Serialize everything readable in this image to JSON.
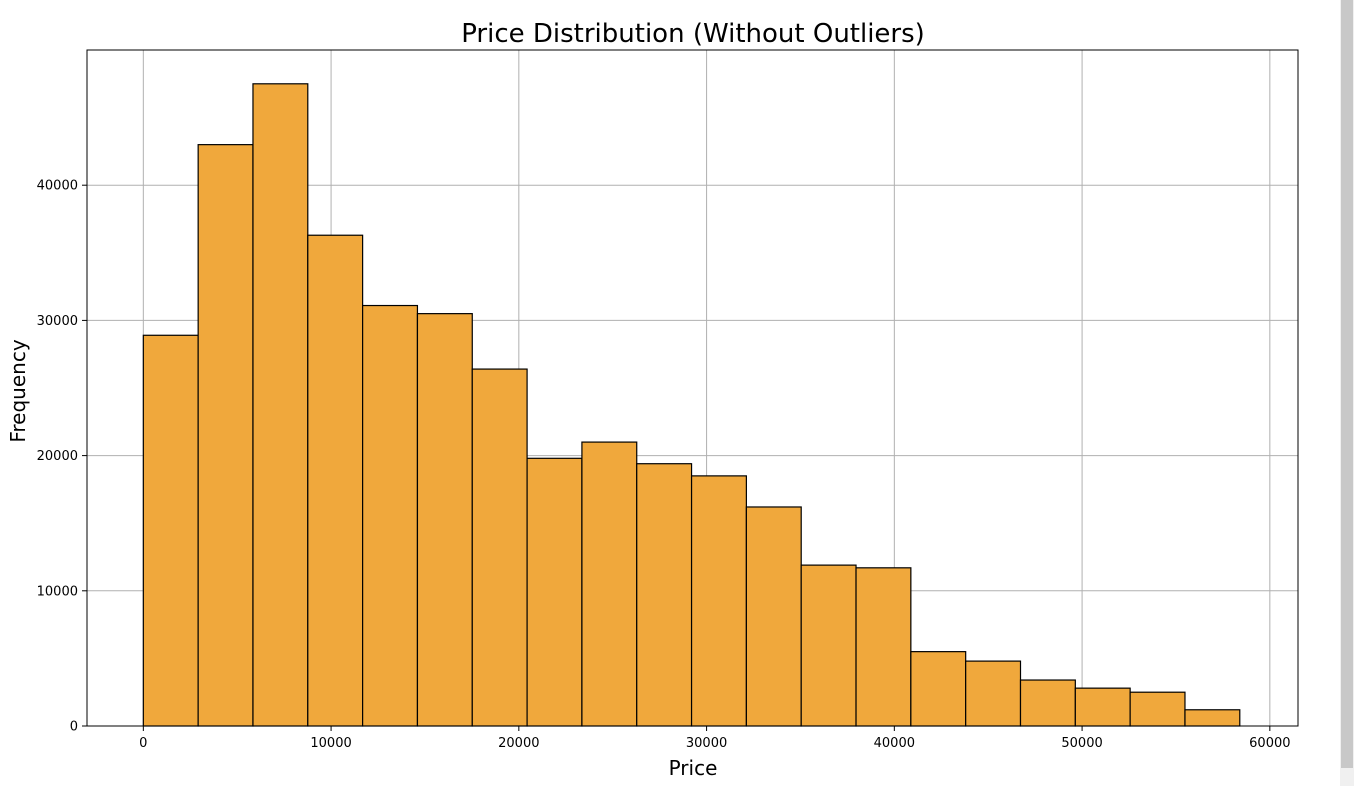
{
  "chart_data": {
    "type": "bar",
    "title": "Price Distribution (Without Outliers)",
    "xlabel": "Price",
    "ylabel": "Frequency",
    "xlim": [
      -3000,
      61500
    ],
    "ylim": [
      0,
      50000
    ],
    "x_ticks": [
      0,
      10000,
      20000,
      30000,
      40000,
      50000,
      60000
    ],
    "y_ticks": [
      0,
      10000,
      20000,
      30000,
      40000
    ],
    "grid": true,
    "bar_color": "#f0a83c",
    "bar_edge_color": "#000000",
    "bins": [
      {
        "start": 0,
        "end": 2920,
        "count": 28900
      },
      {
        "start": 2920,
        "end": 5840,
        "count": 43000
      },
      {
        "start": 5840,
        "end": 8760,
        "count": 47500
      },
      {
        "start": 8760,
        "end": 11680,
        "count": 36300
      },
      {
        "start": 11680,
        "end": 14600,
        "count": 31100
      },
      {
        "start": 14600,
        "end": 17520,
        "count": 30500
      },
      {
        "start": 17520,
        "end": 20440,
        "count": 26400
      },
      {
        "start": 20440,
        "end": 23360,
        "count": 19800
      },
      {
        "start": 23360,
        "end": 26280,
        "count": 21000
      },
      {
        "start": 26280,
        "end": 29200,
        "count": 19400
      },
      {
        "start": 29200,
        "end": 32120,
        "count": 18500
      },
      {
        "start": 32120,
        "end": 35040,
        "count": 16200
      },
      {
        "start": 35040,
        "end": 37960,
        "count": 11900
      },
      {
        "start": 37960,
        "end": 40880,
        "count": 11700
      },
      {
        "start": 40880,
        "end": 43800,
        "count": 5500
      },
      {
        "start": 43800,
        "end": 46720,
        "count": 4800
      },
      {
        "start": 46720,
        "end": 49640,
        "count": 3400
      },
      {
        "start": 49640,
        "end": 52560,
        "count": 2800
      },
      {
        "start": 52560,
        "end": 55480,
        "count": 2500
      },
      {
        "start": 55480,
        "end": 58400,
        "count": 1200
      }
    ]
  }
}
